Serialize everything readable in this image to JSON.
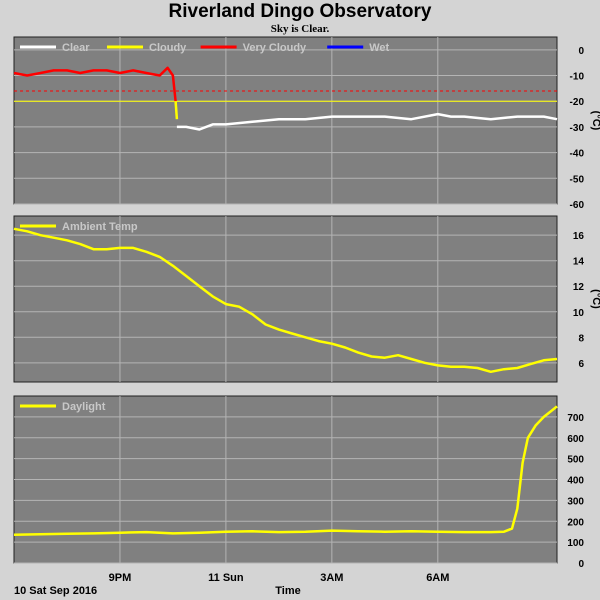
{
  "header": {
    "title": "Riverland Dingo Observatory",
    "subtitle": "Sky is Clear."
  },
  "footer": {
    "date_label": "10 Sat Sep 2016",
    "xlabel": "Time"
  },
  "colors": {
    "background": "#d4d4d4",
    "plot_bg": "#808080",
    "grid": "#b4b4b4",
    "clear": "#ffffff",
    "cloudy": "#ffff00",
    "very_cloudy": "#ff0000",
    "wet": "#0000ff",
    "threshold_line": "#ff0000"
  },
  "chart_data": [
    {
      "type": "line",
      "name": "sky",
      "ylabel": "(°C)",
      "ylim": [
        -60,
        5
      ],
      "yticks": [
        0,
        -10,
        -20,
        -30,
        -40,
        -50,
        -60
      ],
      "grid": true,
      "legend_position": "top-left",
      "legend": [
        {
          "label": "Clear",
          "color": "#ffffff"
        },
        {
          "label": "Cloudy",
          "color": "#ffff00"
        },
        {
          "label": "Very Cloudy",
          "color": "#ff0000"
        },
        {
          "label": "Wet",
          "color": "#0000ff"
        }
      ],
      "thresholds": [
        {
          "y": -16,
          "color": "#ff0000",
          "style": "dashed"
        },
        {
          "y": -20,
          "color": "#ffff00",
          "style": "solid"
        }
      ],
      "series": [
        {
          "name": "Very Cloudy",
          "color": "#ff0000",
          "x": [
            17.0,
            17.5,
            18.0,
            18.5,
            19.0,
            19.5,
            20.0,
            20.5,
            21.0,
            21.5,
            22.0,
            22.5,
            22.8,
            23.0,
            23.1
          ],
          "values": [
            -9,
            -10,
            -9,
            -8,
            -8,
            -9,
            -8,
            -8,
            -9,
            -8,
            -9,
            -10,
            -7,
            -10,
            -20
          ]
        },
        {
          "name": "Cloudy",
          "color": "#ffff00",
          "x": [
            23.1,
            23.15
          ],
          "values": [
            -20,
            -27
          ]
        },
        {
          "name": "Clear",
          "color": "#ffffff",
          "x": [
            23.15,
            23.5,
            24.0,
            24.5,
            25.0,
            26.0,
            27.0,
            28.0,
            29.0,
            30.0,
            31.0,
            32.0,
            33.0,
            33.5,
            34.0,
            35.0,
            36.0,
            37.0,
            37.5
          ],
          "values": [
            -30,
            -30,
            -31,
            -29,
            -29,
            -28,
            -27,
            -27,
            -26,
            -26,
            -26,
            -27,
            -25,
            -26,
            -26,
            -27,
            -26,
            -26,
            -27
          ]
        }
      ]
    },
    {
      "type": "line",
      "name": "ambient",
      "ylabel": "(°C)",
      "ylim": [
        4.5,
        17.5
      ],
      "yticks": [
        16,
        14,
        12,
        10,
        8,
        6
      ],
      "grid": true,
      "legend_position": "top-left",
      "legend": [
        {
          "label": "Ambient Temp",
          "color": "#ffff00"
        }
      ],
      "series": [
        {
          "name": "Ambient Temp",
          "color": "#ffff00",
          "x": [
            17.0,
            17.5,
            18.0,
            18.5,
            19.0,
            19.5,
            20.0,
            20.5,
            21.0,
            21.5,
            22.0,
            22.5,
            23.0,
            23.5,
            24.0,
            24.5,
            25.0,
            25.5,
            26.0,
            26.5,
            27.0,
            27.5,
            28.0,
            28.5,
            29.0,
            29.5,
            30.0,
            30.5,
            31.0,
            31.5,
            32.0,
            32.5,
            33.0,
            33.5,
            34.0,
            34.5,
            35.0,
            35.5,
            36.0,
            36.5,
            37.0,
            37.5
          ],
          "values": [
            16.5,
            16.3,
            16.0,
            15.8,
            15.6,
            15.3,
            14.9,
            14.9,
            15.0,
            15.0,
            14.7,
            14.3,
            13.6,
            12.8,
            12.0,
            11.2,
            10.6,
            10.4,
            9.8,
            9.0,
            8.6,
            8.3,
            8.0,
            7.7,
            7.5,
            7.2,
            6.8,
            6.5,
            6.4,
            6.6,
            6.3,
            6.0,
            5.8,
            5.7,
            5.7,
            5.6,
            5.3,
            5.5,
            5.6,
            5.9,
            6.2,
            6.3
          ]
        }
      ]
    },
    {
      "type": "line",
      "name": "daylight",
      "ylabel": "",
      "ylim": [
        0,
        800
      ],
      "yticks": [
        700,
        600,
        500,
        400,
        300,
        200,
        100,
        0
      ],
      "grid": true,
      "legend_position": "top-left",
      "legend": [
        {
          "label": "Daylight",
          "color": "#ffff00"
        }
      ],
      "series": [
        {
          "name": "Daylight",
          "color": "#ffff00",
          "x": [
            17.0,
            18.0,
            19.0,
            20.0,
            21.0,
            22.0,
            23.0,
            24.0,
            25.0,
            26.0,
            27.0,
            28.0,
            29.0,
            30.0,
            31.0,
            32.0,
            33.0,
            34.0,
            35.0,
            35.5,
            35.8,
            36.0,
            36.2,
            36.4,
            36.7,
            37.0,
            37.3,
            37.5
          ],
          "values": [
            135,
            138,
            140,
            142,
            145,
            148,
            142,
            145,
            150,
            152,
            148,
            150,
            155,
            152,
            150,
            152,
            150,
            148,
            148,
            150,
            165,
            260,
            480,
            600,
            660,
            700,
            730,
            750
          ]
        }
      ]
    }
  ],
  "x_axis": {
    "range": [
      17.0,
      37.5
    ],
    "ticks": [
      {
        "x": 21,
        "label": "9PM"
      },
      {
        "x": 25,
        "label": "11 Sun"
      },
      {
        "x": 29,
        "label": "3AM"
      },
      {
        "x": 33,
        "label": "6AM"
      }
    ],
    "gridlines": [
      21,
      25,
      29,
      33
    ]
  }
}
